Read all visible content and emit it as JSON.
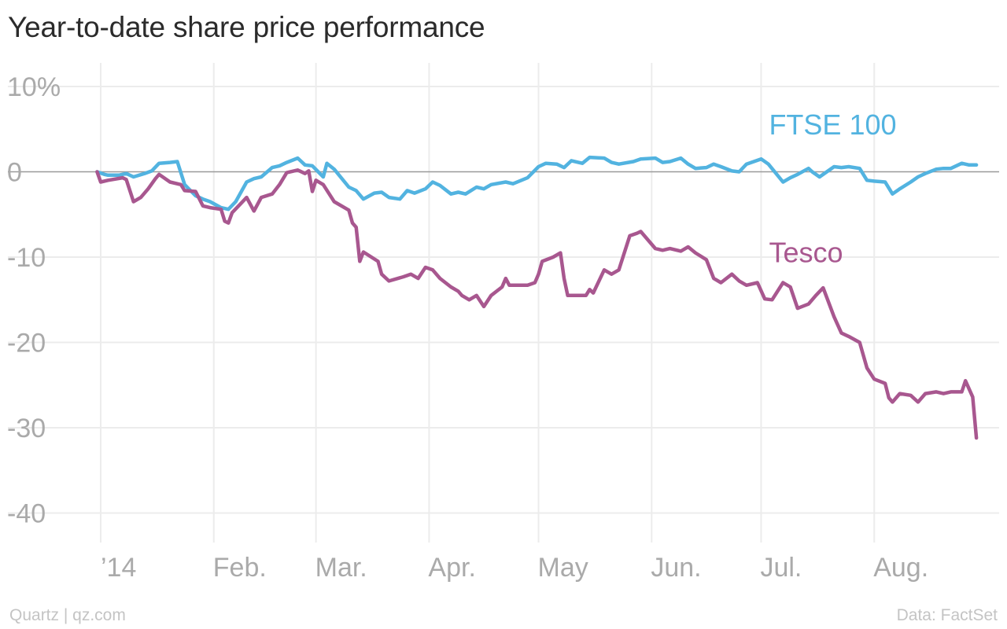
{
  "title": "Year-to-date share price performance",
  "footer": {
    "source_left": "Quartz | qz.com",
    "source_right": "Data: FactSet"
  },
  "colors": {
    "ftse": "#52b3e0",
    "tesco": "#a8578f",
    "grid": "#ececec",
    "zero": "#999999",
    "tick": "#aaaaaa"
  },
  "chart_data": {
    "type": "line",
    "title": "Year-to-date share price performance",
    "xlabel": "",
    "ylabel": "",
    "x_range": [
      "2013-12-31",
      "2014-08-29"
    ],
    "ylim": [
      -45,
      12
    ],
    "y_ticks": [
      {
        "value": 10,
        "label": "10%"
      },
      {
        "value": 0,
        "label": "0"
      },
      {
        "value": -10,
        "label": "-10"
      },
      {
        "value": -20,
        "label": "-20"
      },
      {
        "value": -30,
        "label": "-30"
      },
      {
        "value": -40,
        "label": "-40"
      }
    ],
    "x_ticks": [
      {
        "date": "2014-01-01",
        "label": "’14"
      },
      {
        "date": "2014-02-01",
        "label": "Feb."
      },
      {
        "date": "2014-03-01",
        "label": "Mar."
      },
      {
        "date": "2014-04-01",
        "label": "Apr."
      },
      {
        "date": "2014-05-01",
        "label": "May"
      },
      {
        "date": "2014-06-01",
        "label": "Jun."
      },
      {
        "date": "2014-07-01",
        "label": "Jul."
      },
      {
        "date": "2014-08-01",
        "label": "Aug."
      }
    ],
    "grid": true,
    "series": [
      {
        "name": "FTSE 100",
        "color": "#52b3e0",
        "points": [
          [
            "2013-12-31",
            0.0
          ],
          [
            "2014-01-02",
            -0.3
          ],
          [
            "2014-01-03",
            -0.4
          ],
          [
            "2014-01-06",
            -0.4
          ],
          [
            "2014-01-08",
            -0.2
          ],
          [
            "2014-01-10",
            -0.6
          ],
          [
            "2014-01-13",
            -0.2
          ],
          [
            "2014-01-15",
            0.1
          ],
          [
            "2014-01-17",
            1.0
          ],
          [
            "2014-01-20",
            1.1
          ],
          [
            "2014-01-22",
            1.2
          ],
          [
            "2014-01-24",
            -1.5
          ],
          [
            "2014-01-27",
            -2.8
          ],
          [
            "2014-01-29",
            -3.2
          ],
          [
            "2014-01-31",
            -3.5
          ],
          [
            "2014-02-03",
            -4.2
          ],
          [
            "2014-02-05",
            -4.4
          ],
          [
            "2014-02-07",
            -3.5
          ],
          [
            "2014-02-10",
            -1.2
          ],
          [
            "2014-02-12",
            -0.8
          ],
          [
            "2014-02-14",
            -0.6
          ],
          [
            "2014-02-17",
            0.5
          ],
          [
            "2014-02-19",
            0.7
          ],
          [
            "2014-02-21",
            1.1
          ],
          [
            "2014-02-24",
            1.6
          ],
          [
            "2014-02-26",
            0.8
          ],
          [
            "2014-02-28",
            0.7
          ],
          [
            "2014-03-03",
            -0.6
          ],
          [
            "2014-03-04",
            1.0
          ],
          [
            "2014-03-06",
            0.3
          ],
          [
            "2014-03-10",
            -1.8
          ],
          [
            "2014-03-12",
            -2.2
          ],
          [
            "2014-03-14",
            -3.2
          ],
          [
            "2014-03-17",
            -2.5
          ],
          [
            "2014-03-19",
            -2.4
          ],
          [
            "2014-03-21",
            -3.0
          ],
          [
            "2014-03-24",
            -3.2
          ],
          [
            "2014-03-26",
            -2.2
          ],
          [
            "2014-03-28",
            -2.5
          ],
          [
            "2014-03-31",
            -2.0
          ],
          [
            "2014-04-02",
            -1.2
          ],
          [
            "2014-04-04",
            -1.6
          ],
          [
            "2014-04-07",
            -2.6
          ],
          [
            "2014-04-09",
            -2.4
          ],
          [
            "2014-04-11",
            -2.6
          ],
          [
            "2014-04-14",
            -1.8
          ],
          [
            "2014-04-16",
            -2.0
          ],
          [
            "2014-04-18",
            -1.5
          ],
          [
            "2014-04-22",
            -1.2
          ],
          [
            "2014-04-24",
            -1.4
          ],
          [
            "2014-04-28",
            -0.7
          ],
          [
            "2014-05-01",
            0.6
          ],
          [
            "2014-05-03",
            1.0
          ],
          [
            "2014-05-06",
            0.9
          ],
          [
            "2014-05-08",
            0.5
          ],
          [
            "2014-05-10",
            1.3
          ],
          [
            "2014-05-13",
            1.0
          ],
          [
            "2014-05-15",
            1.7
          ],
          [
            "2014-05-19",
            1.6
          ],
          [
            "2014-05-21",
            1.1
          ],
          [
            "2014-05-23",
            0.9
          ],
          [
            "2014-05-27",
            1.2
          ],
          [
            "2014-05-29",
            1.5
          ],
          [
            "2014-06-02",
            1.6
          ],
          [
            "2014-06-04",
            1.1
          ],
          [
            "2014-06-06",
            1.2
          ],
          [
            "2014-06-09",
            1.6
          ],
          [
            "2014-06-11",
            0.9
          ],
          [
            "2014-06-13",
            0.4
          ],
          [
            "2014-06-16",
            0.5
          ],
          [
            "2014-06-18",
            0.9
          ],
          [
            "2014-06-20",
            0.6
          ],
          [
            "2014-06-23",
            0.1
          ],
          [
            "2014-06-25",
            0.0
          ],
          [
            "2014-06-27",
            0.9
          ],
          [
            "2014-07-01",
            1.5
          ],
          [
            "2014-07-03",
            0.9
          ],
          [
            "2014-07-07",
            -1.2
          ],
          [
            "2014-07-09",
            -0.7
          ],
          [
            "2014-07-11",
            -0.3
          ],
          [
            "2014-07-14",
            0.4
          ],
          [
            "2014-07-15",
            0.0
          ],
          [
            "2014-07-17",
            -0.6
          ],
          [
            "2014-07-21",
            0.6
          ],
          [
            "2014-07-23",
            0.5
          ],
          [
            "2014-07-25",
            0.6
          ],
          [
            "2014-07-28",
            0.4
          ],
          [
            "2014-07-30",
            -1.0
          ],
          [
            "2014-08-01",
            -1.1
          ],
          [
            "2014-08-04",
            -1.2
          ],
          [
            "2014-08-06",
            -2.6
          ],
          [
            "2014-08-08",
            -2.0
          ],
          [
            "2014-08-11",
            -1.2
          ],
          [
            "2014-08-13",
            -0.6
          ],
          [
            "2014-08-15",
            -0.2
          ],
          [
            "2014-08-18",
            0.3
          ],
          [
            "2014-08-20",
            0.4
          ],
          [
            "2014-08-22",
            0.4
          ],
          [
            "2014-08-25",
            1.0
          ],
          [
            "2014-08-27",
            0.8
          ],
          [
            "2014-08-29",
            0.8
          ]
        ]
      },
      {
        "name": "Tesco",
        "color": "#a8578f",
        "points": [
          [
            "2013-12-31",
            0.0
          ],
          [
            "2014-01-01",
            -1.2
          ],
          [
            "2014-01-03",
            -1.0
          ],
          [
            "2014-01-07",
            -0.7
          ],
          [
            "2014-01-08",
            -0.9
          ],
          [
            "2014-01-10",
            -3.5
          ],
          [
            "2014-01-12",
            -3.0
          ],
          [
            "2014-01-14",
            -2.0
          ],
          [
            "2014-01-16",
            -0.8
          ],
          [
            "2014-01-17",
            -0.3
          ],
          [
            "2014-01-20",
            -1.2
          ],
          [
            "2014-01-23",
            -1.5
          ],
          [
            "2014-01-24",
            -2.2
          ],
          [
            "2014-01-27",
            -2.3
          ],
          [
            "2014-01-29",
            -4.0
          ],
          [
            "2014-01-31",
            -4.2
          ],
          [
            "2014-02-03",
            -4.4
          ],
          [
            "2014-02-04",
            -5.8
          ],
          [
            "2014-02-05",
            -6.0
          ],
          [
            "2014-02-06",
            -4.8
          ],
          [
            "2014-02-10",
            -3.0
          ],
          [
            "2014-02-12",
            -4.6
          ],
          [
            "2014-02-14",
            -3.0
          ],
          [
            "2014-02-17",
            -2.6
          ],
          [
            "2014-02-19",
            -1.5
          ],
          [
            "2014-02-21",
            -0.1
          ],
          [
            "2014-02-24",
            0.2
          ],
          [
            "2014-02-26",
            -0.2
          ],
          [
            "2014-02-27",
            0.1
          ],
          [
            "2014-02-28",
            -2.3
          ],
          [
            "2014-03-01",
            -1.0
          ],
          [
            "2014-03-03",
            -1.5
          ],
          [
            "2014-03-06",
            -3.5
          ],
          [
            "2014-03-10",
            -4.5
          ],
          [
            "2014-03-11",
            -6.0
          ],
          [
            "2014-03-12",
            -6.5
          ],
          [
            "2014-03-13",
            -10.5
          ],
          [
            "2014-03-14",
            -9.4
          ],
          [
            "2014-03-18",
            -10.5
          ],
          [
            "2014-03-19",
            -12.0
          ],
          [
            "2014-03-21",
            -12.8
          ],
          [
            "2014-03-25",
            -12.3
          ],
          [
            "2014-03-27",
            -12.0
          ],
          [
            "2014-03-29",
            -12.5
          ],
          [
            "2014-03-31",
            -11.2
          ],
          [
            "2014-04-02",
            -11.5
          ],
          [
            "2014-04-04",
            -12.5
          ],
          [
            "2014-04-07",
            -13.5
          ],
          [
            "2014-04-09",
            -14.0
          ],
          [
            "2014-04-10",
            -14.5
          ],
          [
            "2014-04-12",
            -15.0
          ],
          [
            "2014-04-14",
            -14.5
          ],
          [
            "2014-04-16",
            -15.8
          ],
          [
            "2014-04-18",
            -14.5
          ],
          [
            "2014-04-21",
            -13.5
          ],
          [
            "2014-04-22",
            -12.5
          ],
          [
            "2014-04-23",
            -13.3
          ],
          [
            "2014-04-25",
            -13.3
          ],
          [
            "2014-04-28",
            -13.3
          ],
          [
            "2014-04-30",
            -13.0
          ],
          [
            "2014-05-01",
            -12.0
          ],
          [
            "2014-05-02",
            -10.5
          ],
          [
            "2014-05-05",
            -10.0
          ],
          [
            "2014-05-07",
            -9.5
          ],
          [
            "2014-05-08",
            -12.5
          ],
          [
            "2014-05-09",
            -14.5
          ],
          [
            "2014-05-12",
            -14.5
          ],
          [
            "2014-05-14",
            -14.5
          ],
          [
            "2014-05-15",
            -13.8
          ],
          [
            "2014-05-16",
            -14.2
          ],
          [
            "2014-05-19",
            -11.5
          ],
          [
            "2014-05-21",
            -12.0
          ],
          [
            "2014-05-23",
            -11.5
          ],
          [
            "2014-05-26",
            -7.5
          ],
          [
            "2014-05-28",
            -7.2
          ],
          [
            "2014-05-29",
            -7.0
          ],
          [
            "2014-06-02",
            -9.0
          ],
          [
            "2014-06-04",
            -9.2
          ],
          [
            "2014-06-06",
            -9.0
          ],
          [
            "2014-06-09",
            -9.3
          ],
          [
            "2014-06-11",
            -8.8
          ],
          [
            "2014-06-13",
            -9.5
          ],
          [
            "2014-06-16",
            -10.3
          ],
          [
            "2014-06-18",
            -12.5
          ],
          [
            "2014-06-20",
            -13.0
          ],
          [
            "2014-06-23",
            -12.0
          ],
          [
            "2014-06-25",
            -12.8
          ],
          [
            "2014-06-27",
            -13.3
          ],
          [
            "2014-06-30",
            -13.0
          ],
          [
            "2014-07-02",
            -14.9
          ],
          [
            "2014-07-04",
            -15.0
          ],
          [
            "2014-07-07",
            -13.0
          ],
          [
            "2014-07-09",
            -13.5
          ],
          [
            "2014-07-11",
            -16.0
          ],
          [
            "2014-07-14",
            -15.5
          ],
          [
            "2014-07-16",
            -14.5
          ],
          [
            "2014-07-18",
            -13.6
          ],
          [
            "2014-07-21",
            -17.0
          ],
          [
            "2014-07-23",
            -18.9
          ],
          [
            "2014-07-25",
            -19.3
          ],
          [
            "2014-07-28",
            -20.0
          ],
          [
            "2014-07-30",
            -23.0
          ],
          [
            "2014-08-01",
            -24.3
          ],
          [
            "2014-08-04",
            -24.8
          ],
          [
            "2014-08-05",
            -26.5
          ],
          [
            "2014-08-06",
            -27.0
          ],
          [
            "2014-08-08",
            -26.0
          ],
          [
            "2014-08-11",
            -26.2
          ],
          [
            "2014-08-13",
            -27.0
          ],
          [
            "2014-08-15",
            -26.0
          ],
          [
            "2014-08-18",
            -25.8
          ],
          [
            "2014-08-20",
            -26.0
          ],
          [
            "2014-08-22",
            -25.8
          ],
          [
            "2014-08-25",
            -25.8
          ],
          [
            "2014-08-26",
            -24.5
          ],
          [
            "2014-08-28",
            -26.4
          ],
          [
            "2014-08-29",
            -31.2
          ]
        ]
      }
    ],
    "annotations": [
      {
        "text": "FTSE 100",
        "series": "FTSE 100",
        "at_date": "2014-07-01",
        "value": 5.5
      },
      {
        "text": "Tesco",
        "series": "Tesco",
        "at_date": "2014-07-01",
        "value": -9.5
      }
    ]
  }
}
